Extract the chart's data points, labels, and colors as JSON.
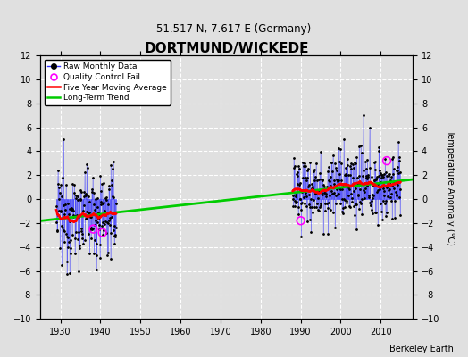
{
  "title": "DORTMUND/WICKEDE",
  "subtitle": "51.517 N, 7.617 E (Germany)",
  "ylabel": "Temperature Anomaly (°C)",
  "credit": "Berkeley Earth",
  "xlim": [
    1925,
    2018
  ],
  "ylim": [
    -10,
    12
  ],
  "yticks": [
    -10,
    -8,
    -6,
    -4,
    -2,
    0,
    2,
    4,
    6,
    8,
    10,
    12
  ],
  "xticks": [
    1930,
    1940,
    1950,
    1960,
    1970,
    1980,
    1990,
    2000,
    2010
  ],
  "bg_color": "#e0e0e0",
  "grid_color": "#ffffff",
  "data_color_blue": "#3333ff",
  "data_color_red": "#ff0000",
  "data_color_green": "#00cc00",
  "qc_color": "#ff00ff",
  "seed": 12345,
  "period1_start": 1929,
  "period1_end": 1943,
  "period2_start": 1988,
  "period2_end": 2014
}
